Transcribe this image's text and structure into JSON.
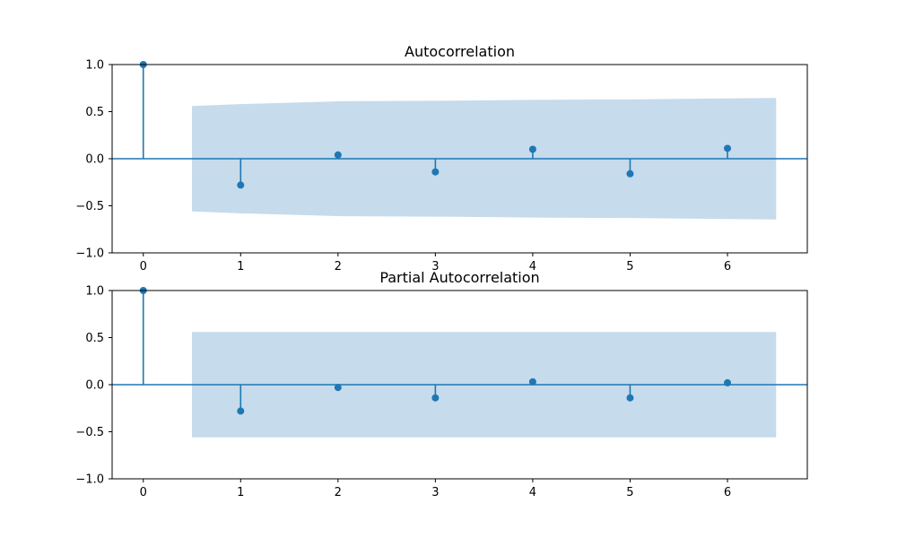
{
  "colors": {
    "stem": "#1f77b4",
    "band": "#c6dbec",
    "axis": "#000000",
    "background": "#ffffff"
  },
  "chart_data": [
    {
      "type": "stem",
      "title": "Autocorrelation",
      "xlabel": "",
      "ylabel": "",
      "xlim": [
        -0.32,
        6.82
      ],
      "ylim": [
        -1.0,
        1.0
      ],
      "xticks": [
        "0",
        "1",
        "2",
        "3",
        "4",
        "5",
        "6"
      ],
      "yticks": [
        "1.0",
        "0.5",
        "0.0",
        "−0.5",
        "−1.0"
      ],
      "ytick_values": [
        1.0,
        0.5,
        0.0,
        -0.5,
        -1.0
      ],
      "grid": false,
      "x": [
        0,
        1,
        2,
        3,
        4,
        5,
        6
      ],
      "values": [
        1.0,
        -0.28,
        0.04,
        -0.14,
        0.1,
        -0.16,
        0.11
      ],
      "confidence_band": {
        "x": [
          0.5,
          1,
          2,
          3,
          4,
          5,
          6,
          6.5
        ],
        "upper": [
          0.56,
          0.58,
          0.61,
          0.615,
          0.625,
          0.63,
          0.64,
          0.645
        ],
        "lower": [
          -0.56,
          -0.58,
          -0.61,
          -0.615,
          -0.625,
          -0.63,
          -0.64,
          -0.645
        ]
      }
    },
    {
      "type": "stem",
      "title": "Partial Autocorrelation",
      "xlabel": "",
      "ylabel": "",
      "xlim": [
        -0.32,
        6.82
      ],
      "ylim": [
        -1.0,
        1.0
      ],
      "xticks": [
        "0",
        "1",
        "2",
        "3",
        "4",
        "5",
        "6"
      ],
      "yticks": [
        "1.0",
        "0.5",
        "0.0",
        "−0.5",
        "−1.0"
      ],
      "ytick_values": [
        1.0,
        0.5,
        0.0,
        -0.5,
        -1.0
      ],
      "grid": false,
      "x": [
        0,
        1,
        2,
        3,
        4,
        5,
        6
      ],
      "values": [
        1.0,
        -0.28,
        -0.03,
        -0.14,
        0.03,
        -0.14,
        0.02
      ],
      "confidence_band": {
        "x": [
          0.5,
          6.5
        ],
        "upper": [
          0.56,
          0.56
        ],
        "lower": [
          -0.56,
          -0.56
        ]
      }
    }
  ]
}
